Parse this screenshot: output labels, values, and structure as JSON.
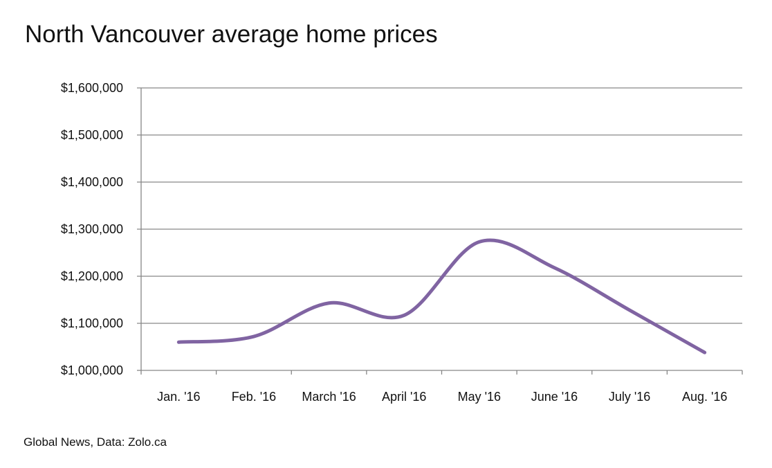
{
  "title": "North Vancouver average home prices",
  "source": "Global News, Data: Zolo.ca",
  "colors": {
    "line": "#8064a2",
    "grid": "#868686",
    "text": "#111111"
  },
  "chart_data": {
    "type": "line",
    "title": "North Vancouver average home prices",
    "xlabel": "",
    "ylabel": "",
    "categories": [
      "Jan. '16",
      "Feb. '16",
      "March '16",
      "April '16",
      "May '16",
      "June '16",
      "July '16",
      "Aug. '16"
    ],
    "series": [
      {
        "name": "Average home price",
        "values": [
          1060000,
          1072000,
          1143000,
          1117000,
          1273000,
          1218000,
          1128000,
          1038000
        ]
      }
    ],
    "ylim": [
      1000000,
      1600000
    ],
    "yticks": [
      1000000,
      1100000,
      1200000,
      1300000,
      1400000,
      1500000,
      1600000
    ],
    "ytick_labels": [
      "$1,000,000",
      "$1,100,000",
      "$1,200,000",
      "$1,300,000",
      "$1,400,000",
      "$1,500,000",
      "$1,600,000"
    ],
    "grid": true,
    "smooth": true
  }
}
